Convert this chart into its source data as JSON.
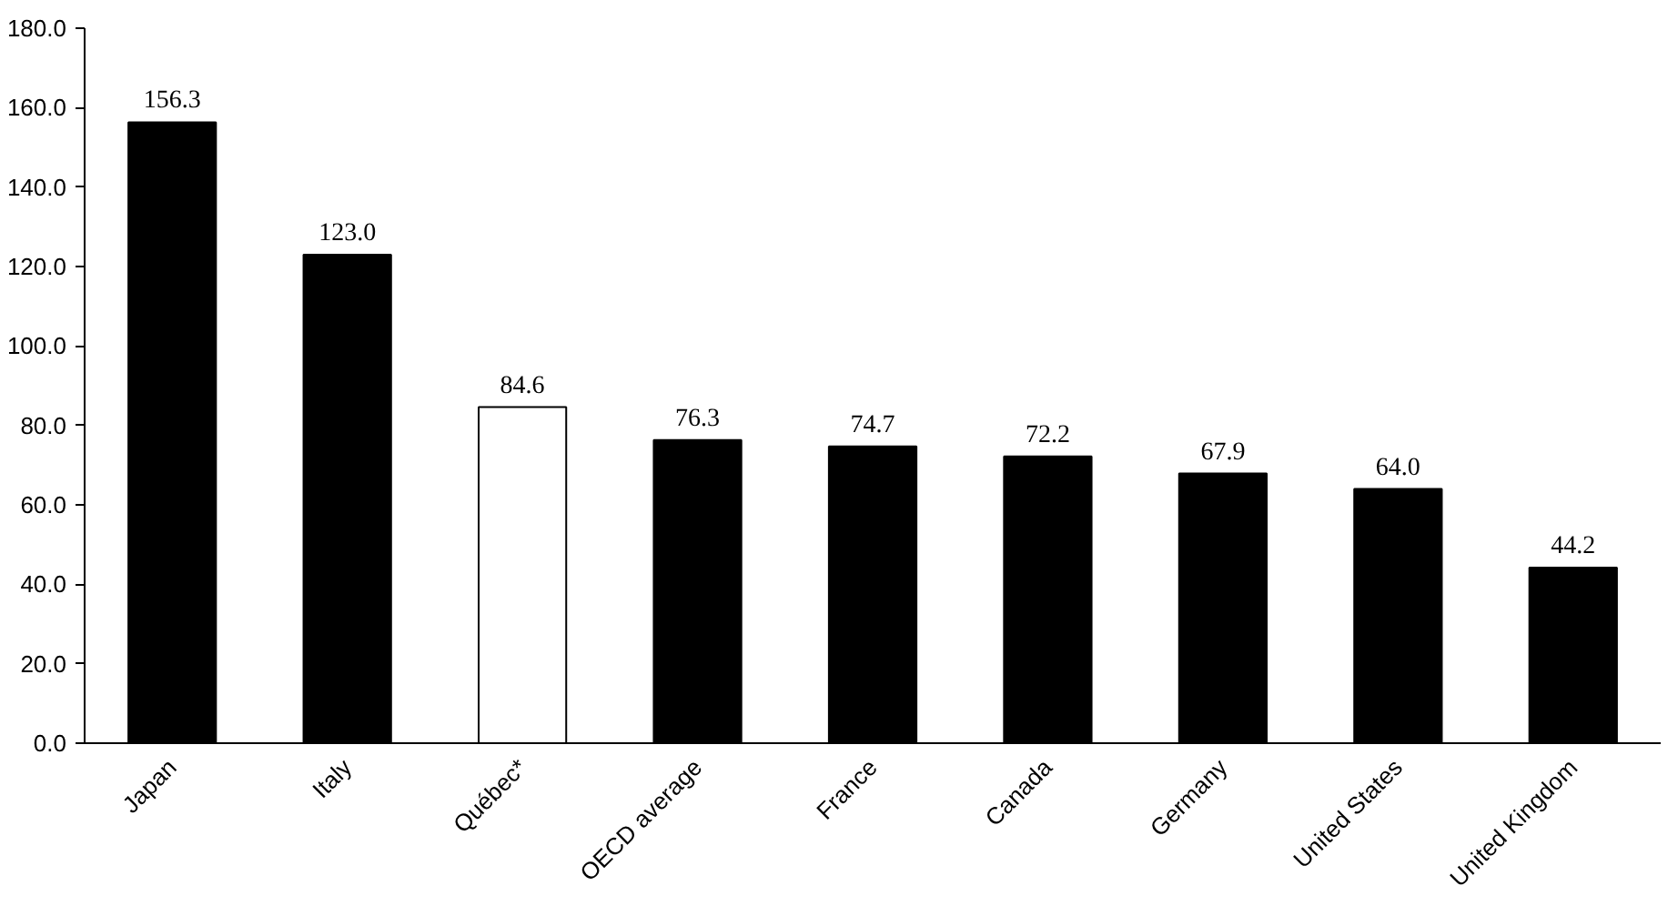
{
  "chart_data": {
    "type": "bar",
    "categories": [
      "Japan",
      "Italy",
      "Québec*",
      "OECD average",
      "France",
      "Canada",
      "Germany",
      "United States",
      "United Kingdom"
    ],
    "values": [
      156.3,
      123.0,
      84.6,
      76.3,
      74.7,
      72.2,
      67.9,
      64.0,
      44.2
    ],
    "value_labels": [
      "156.3",
      "123.0",
      "84.6",
      "76.3",
      "74.7",
      "72.2",
      "67.9",
      "64.0",
      "44.2"
    ],
    "colors": [
      "#000000",
      "#000000",
      "#ffffff",
      "#000000",
      "#000000",
      "#000000",
      "#000000",
      "#000000",
      "#000000"
    ],
    "ylim": [
      0,
      180
    ],
    "yticks": [
      {
        "value": 0,
        "label": "0.0"
      },
      {
        "value": 20,
        "label": "20.0"
      },
      {
        "value": 40,
        "label": "40.0"
      },
      {
        "value": 60,
        "label": "60.0"
      },
      {
        "value": 80,
        "label": "80.0"
      },
      {
        "value": 100,
        "label": "100.0"
      },
      {
        "value": 120,
        "label": "120.0"
      },
      {
        "value": 140,
        "label": "140.0"
      },
      {
        "value": 160,
        "label": "160.0"
      },
      {
        "value": 180,
        "label": "180.0"
      }
    ],
    "grid": false
  }
}
